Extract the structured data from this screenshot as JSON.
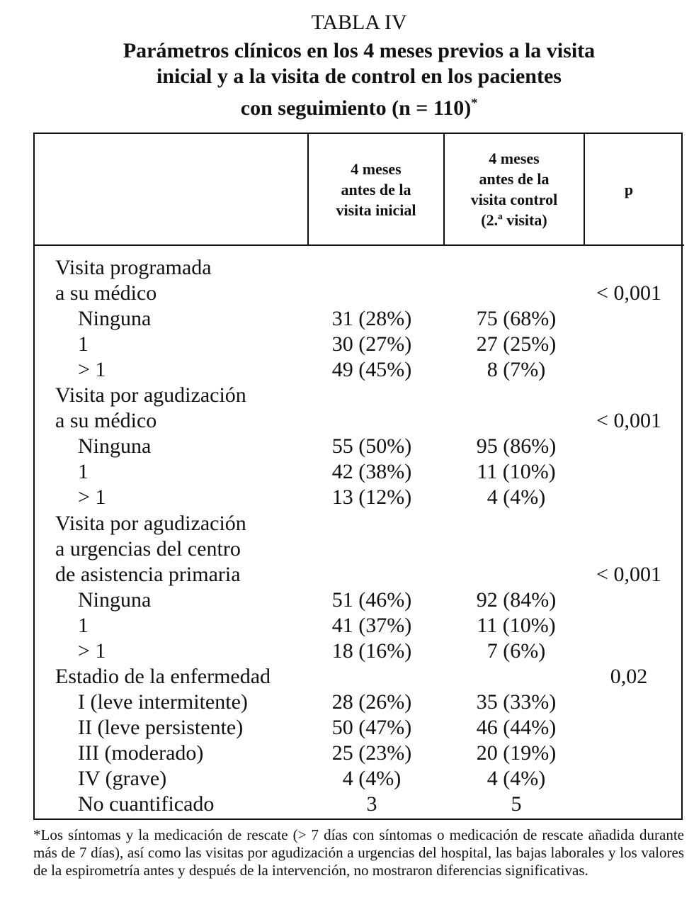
{
  "title": {
    "label": "TABLA IV",
    "lines": [
      "Parámetros clínicos en los 4 meses previos a la visita",
      "inicial y a la visita de control en los pacientes",
      "con seguimiento (n = 110)"
    ],
    "mark": "*"
  },
  "header": {
    "col1": [
      "4 meses",
      "antes de la",
      "visita inicial"
    ],
    "col2": [
      "4 meses",
      "antes de la",
      "visita control",
      "(2.ª visita)"
    ],
    "p": "p"
  },
  "rows": [
    {
      "label": "Visita programada",
      "indent": 0,
      "v1": "",
      "v2": "",
      "p": ""
    },
    {
      "label": "a su médico",
      "indent": 0,
      "v1": "",
      "v2": "",
      "p": "< 0,001"
    },
    {
      "label": "Ninguna",
      "indent": 1,
      "v1": "31 (28%)",
      "v2": "75 (68%)",
      "p": ""
    },
    {
      "label": "1",
      "indent": 1,
      "v1": "30 (27%)",
      "v2": "27 (25%)",
      "p": ""
    },
    {
      "label": "> 1",
      "indent": 1,
      "v1": "49 (45%)",
      "v2": "8 (7%)",
      "p": ""
    },
    {
      "label": "Visita por agudización",
      "indent": 0,
      "v1": "",
      "v2": "",
      "p": ""
    },
    {
      "label": "a su médico",
      "indent": 0,
      "v1": "",
      "v2": "",
      "p": "< 0,001"
    },
    {
      "label": "Ninguna",
      "indent": 1,
      "v1": "55 (50%)",
      "v2": "95 (86%)",
      "p": ""
    },
    {
      "label": "1",
      "indent": 1,
      "v1": "42 (38%)",
      "v2": "11 (10%)",
      "p": ""
    },
    {
      "label": "> 1",
      "indent": 1,
      "v1": "13 (12%)",
      "v2": "4 (4%)",
      "p": ""
    },
    {
      "label": "Visita por agudización",
      "indent": 0,
      "v1": "",
      "v2": "",
      "p": ""
    },
    {
      "label": "a urgencias del centro",
      "indent": 0,
      "v1": "",
      "v2": "",
      "p": ""
    },
    {
      "label": "de asistencia primaria",
      "indent": 0,
      "v1": "",
      "v2": "",
      "p": "< 0,001"
    },
    {
      "label": "Ninguna",
      "indent": 1,
      "v1": "51 (46%)",
      "v2": "92 (84%)",
      "p": ""
    },
    {
      "label": "1",
      "indent": 1,
      "v1": "41 (37%)",
      "v2": "11 (10%)",
      "p": ""
    },
    {
      "label": "> 1",
      "indent": 1,
      "v1": "18 (16%)",
      "v2": "7 (6%)",
      "p": ""
    },
    {
      "label": "Estadio de la enfermedad",
      "indent": 0,
      "v1": "",
      "v2": "",
      "p": "0,02"
    },
    {
      "label": "I (leve intermitente)",
      "indent": 1,
      "v1": "28 (26%)",
      "v2": "35 (33%)",
      "p": ""
    },
    {
      "label": "II (leve persistente)",
      "indent": 1,
      "v1": "50 (47%)",
      "v2": "46 (44%)",
      "p": ""
    },
    {
      "label": "III (moderado)",
      "indent": 1,
      "v1": "25 (23%)",
      "v2": "20 (19%)",
      "p": ""
    },
    {
      "label": "IV (grave)",
      "indent": 1,
      "v1": "4 (4%)",
      "v2": "4 (4%)",
      "p": ""
    },
    {
      "label": "No cuantificado",
      "indent": 1,
      "v1": "3",
      "v2": "5",
      "p": ""
    }
  ],
  "footnote": "*Los síntomas y la medicación de rescate (> 7 días con síntomas o medicación de rescate añadida durante más de 7 días), así como las visitas por agudización a urgencias del hospital, las bajas laborales y los valores de la espirometría antes y después de la intervención, no mostraron diferencias significativas."
}
